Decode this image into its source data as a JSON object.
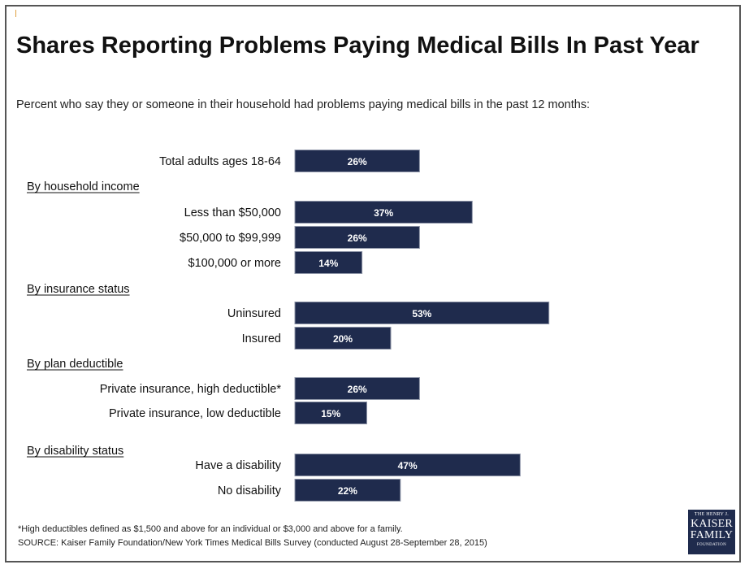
{
  "header": {
    "title": "Shares Reporting Problems Paying Medical Bills In Past Year",
    "subtitle": "Percent who say they or someone in their household had problems paying medical bills in the past 12 months:"
  },
  "footer": {
    "footnote": "*High deductibles defined as $1,500 and above for an individual or $3,000 and above for a family.",
    "source": "SOURCE: Kaiser Family Foundation/New York Times Medical Bills Survey (conducted August 28-September 28, 2015)"
  },
  "logo": {
    "line1": "THE HENRY J.",
    "line2": "KAISER",
    "line3": "FAMILY",
    "line4": "FOUNDATION"
  },
  "colors": {
    "bar": "#1f2b4d",
    "bar_label": "#ffffff",
    "text": "#222222"
  },
  "chart_data": {
    "type": "bar",
    "orientation": "horizontal",
    "value_format": "percent",
    "xlim": [
      0,
      100
    ],
    "rows": [
      {
        "kind": "bar",
        "label": "Total adults ages 18-64",
        "value": 26
      },
      {
        "kind": "group",
        "label": "By household income"
      },
      {
        "kind": "bar",
        "label": "Less than $50,000",
        "value": 37
      },
      {
        "kind": "bar",
        "label": "$50,000 to $99,999",
        "value": 26
      },
      {
        "kind": "bar",
        "label": "$100,000 or more",
        "value": 14
      },
      {
        "kind": "group",
        "label": "By insurance status"
      },
      {
        "kind": "bar",
        "label": "Uninsured",
        "value": 53
      },
      {
        "kind": "bar",
        "label": "Insured",
        "value": 20
      },
      {
        "kind": "group",
        "label": "By plan deductible"
      },
      {
        "kind": "bar",
        "label": "Private insurance, high deductible*",
        "value": 26
      },
      {
        "kind": "bar",
        "label": "Private insurance, low deductible",
        "value": 15
      },
      {
        "kind": "group",
        "label": "By disability status"
      },
      {
        "kind": "bar",
        "label": "Have a disability",
        "value": 47
      },
      {
        "kind": "bar",
        "label": "No disability",
        "value": 22
      }
    ]
  }
}
